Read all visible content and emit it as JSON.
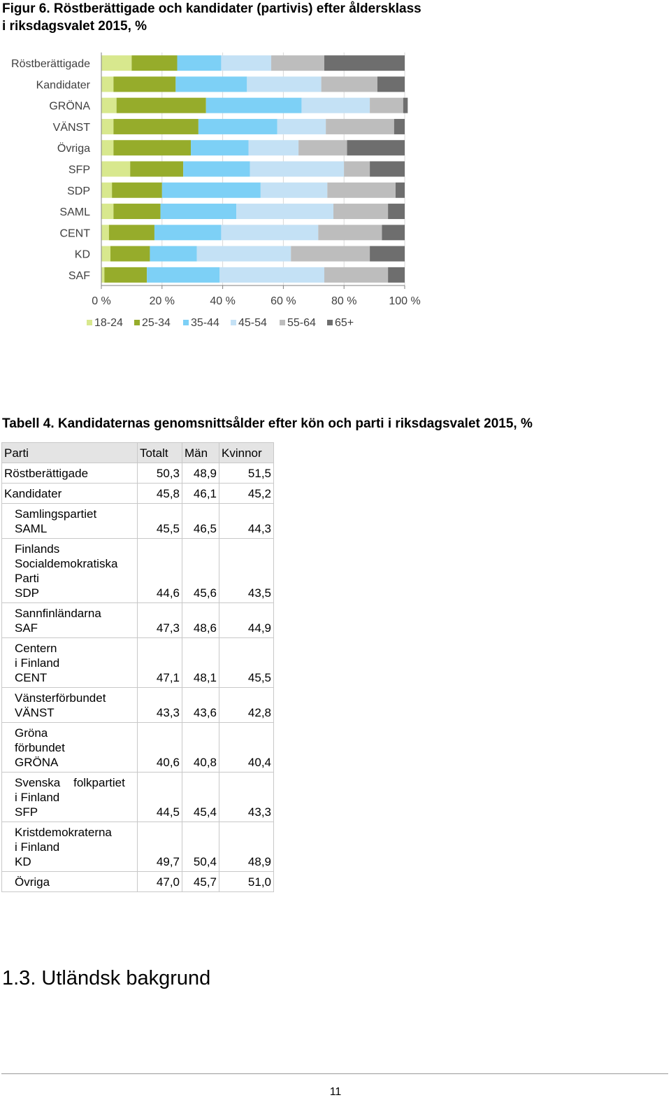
{
  "figure": {
    "title_line1": "Figur 6. Röstberättigade och kandidater (partivis) efter åldersklass",
    "title_line2": "i riksdagsvalet 2015, %"
  },
  "chart_data": {
    "type": "bar",
    "orientation": "horizontal",
    "stacked": true,
    "categories": [
      "Röstberättigade",
      "Kandidater",
      "GRÖNA",
      "VÄNST",
      "Övriga",
      "SFP",
      "SDP",
      "SAML",
      "CENT",
      "KD",
      "SAF"
    ],
    "series": [
      {
        "name": "18-24",
        "color": "#d8e88e",
        "values": [
          10,
          4,
          5,
          4,
          4,
          9.5,
          3.5,
          4,
          2.5,
          3,
          1
        ]
      },
      {
        "name": "25-34",
        "color": "#96ac2b",
        "values": [
          15,
          20.5,
          29.5,
          28,
          25.5,
          17.5,
          16.5,
          15.5,
          15,
          13,
          14
        ]
      },
      {
        "name": "35-44",
        "color": "#7dd0f6",
        "values": [
          14.5,
          23.5,
          31.5,
          26,
          19,
          22,
          32.5,
          25,
          22,
          15.5,
          24
        ]
      },
      {
        "name": "45-54",
        "color": "#c4e1f5",
        "values": [
          16.5,
          24.5,
          22.5,
          16,
          16.5,
          31,
          22,
          32,
          32,
          31,
          34.5
        ]
      },
      {
        "name": "55-64",
        "color": "#bdbdbd",
        "values": [
          17.5,
          18.5,
          11,
          22.5,
          16,
          8.5,
          22.5,
          18,
          21,
          26,
          21
        ]
      },
      {
        "name": "65+",
        "color": "#6e6e6e",
        "values": [
          26.5,
          9,
          1.5,
          3.5,
          19,
          11.5,
          3,
          5.5,
          7.5,
          11.5,
          5.5
        ]
      }
    ],
    "xlim": [
      0,
      100
    ],
    "x_ticks": [
      "0 %",
      "20 %",
      "40 %",
      "60 %",
      "80 %",
      "100 %"
    ],
    "grid": true,
    "legend_position": "bottom"
  },
  "table": {
    "title": "Tabell 4. Kandidaternas genomsnittsålder efter kön och parti i riksdagsvalet 2015, %",
    "headers": [
      "Parti",
      "Totalt",
      "Män",
      "Kvinnor"
    ],
    "rows": [
      {
        "lines": [
          "Röstberättigade"
        ],
        "indent": false,
        "totalt": "50,3",
        "man": "48,9",
        "kvinnor": "51,5"
      },
      {
        "lines": [
          "Kandidater"
        ],
        "indent": false,
        "totalt": "45,8",
        "man": "46,1",
        "kvinnor": "45,2"
      },
      {
        "lines": [
          "Samlingspartiet",
          "SAML"
        ],
        "indent": true,
        "totalt": "45,5",
        "man": "46,5",
        "kvinnor": "44,3"
      },
      {
        "lines": [
          "Finlands",
          "Socialdemokratiska",
          "Parti",
          "SDP"
        ],
        "indent": true,
        "totalt": "44,6",
        "man": "45,6",
        "kvinnor": "43,5"
      },
      {
        "lines": [
          "Sannfinländarna",
          "SAF"
        ],
        "indent": true,
        "totalt": "47,3",
        "man": "48,6",
        "kvinnor": "44,9"
      },
      {
        "lines": [
          "Centern",
          "i Finland",
          "CENT"
        ],
        "indent": true,
        "totalt": "47,1",
        "man": "48,1",
        "kvinnor": "45,5"
      },
      {
        "lines": [
          "Vänsterförbundet",
          "VÄNST"
        ],
        "indent": true,
        "totalt": "43,3",
        "man": "43,6",
        "kvinnor": "42,8"
      },
      {
        "lines": [
          "Gröna",
          "förbundet",
          "GRÖNA"
        ],
        "indent": true,
        "totalt": "40,6",
        "man": "40,8",
        "kvinnor": "40,4"
      },
      {
        "lines": [
          "Svenska    folkpartiet",
          "i Finland",
          "SFP"
        ],
        "indent": true,
        "totalt": "44,5",
        "man": "45,4",
        "kvinnor": "43,3"
      },
      {
        "lines": [
          "Kristdemokraterna",
          "i Finland",
          "KD"
        ],
        "indent": true,
        "totalt": "49,7",
        "man": "50,4",
        "kvinnor": "48,9"
      },
      {
        "lines": [
          "Övriga"
        ],
        "indent": true,
        "totalt": "47,0",
        "man": "45,7",
        "kvinnor": "51,0"
      }
    ]
  },
  "section": {
    "heading": "1.3. Utländsk bakgrund"
  },
  "footer": {
    "page_number": "11"
  }
}
